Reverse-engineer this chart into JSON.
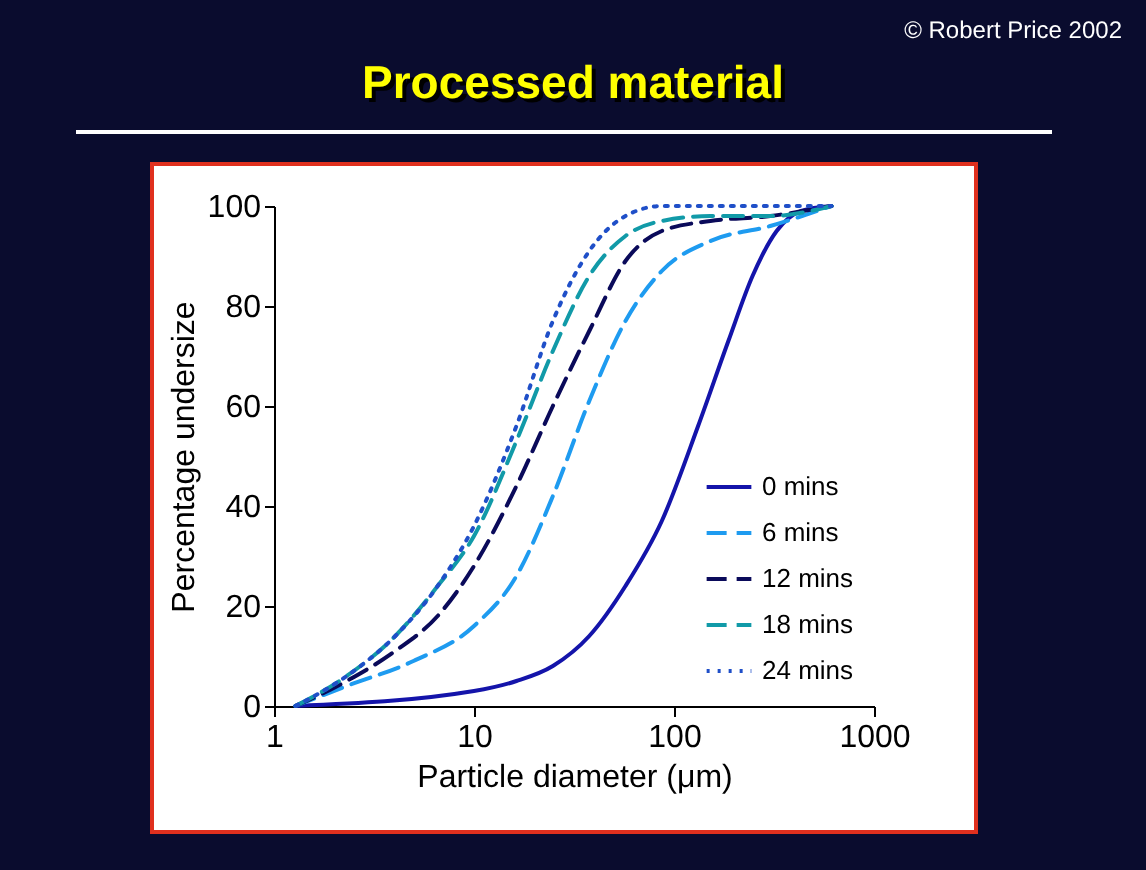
{
  "chart_data": {
    "type": "line",
    "title": "Processed material",
    "annotations": [
      "© Robert Price 2002"
    ],
    "xlabel": "Particle diameter (μm)",
    "ylabel": "Percentage undersize",
    "log": "x",
    "xlim": [
      1,
      1000
    ],
    "xticks": [
      1,
      10,
      100,
      {
        "value": 1000,
        "label": "1000"
      }
    ],
    "ylim": [
      0,
      100
    ],
    "yticks": [
      0,
      20,
      40,
      60,
      80,
      100
    ],
    "grid": false,
    "legend": "bottom right",
    "marker": "none",
    "series": [
      {
        "name": "0 mins",
        "color": "#1414aa",
        "line_style": "solid",
        "x": [
          1.28,
          10,
          16.3,
          24.8,
          37.7,
          57.2,
          86.9,
          132,
          187,
          247,
          326,
          432,
          613
        ],
        "values": [
          0,
          3,
          5,
          8,
          14,
          24,
          37,
          56,
          73,
          86,
          95,
          99,
          100
        ]
      },
      {
        "name": "6 mins",
        "color": "#1e9bf0",
        "line_style": "dashed",
        "x": [
          1.28,
          2.31,
          4.98,
          10,
          16.3,
          24.8,
          37.7,
          57.2,
          86.9,
          152,
          303,
          613
        ],
        "values": [
          0,
          4,
          9,
          16,
          26,
          42,
          61,
          77,
          87,
          93,
          96,
          100
        ]
      },
      {
        "name": "12 mins",
        "color": "#0a0a5a",
        "line_style": "dashed",
        "x": [
          1.28,
          2.31,
          4.04,
          6.58,
          10,
          16.3,
          24.8,
          37.7,
          57.2,
          86.9,
          152,
          303,
          613
        ],
        "values": [
          0,
          5,
          11,
          18,
          28,
          44,
          60,
          75,
          89,
          95,
          97,
          98,
          100
        ]
      },
      {
        "name": "18 mins",
        "color": "#119aa8",
        "line_style": "dashed",
        "x": [
          1.28,
          2.31,
          4.04,
          6.58,
          10,
          16.3,
          24.8,
          37.7,
          57.2,
          86.9,
          152,
          303,
          613
        ],
        "values": [
          0,
          6,
          14,
          24,
          34,
          53,
          71,
          86,
          94,
          97,
          98,
          98,
          100
        ]
      },
      {
        "name": "24 mins",
        "color": "#1f4fc8",
        "line_style": "dotted",
        "x": [
          1.28,
          2.31,
          4.04,
          6.58,
          10,
          16.3,
          24.8,
          37.7,
          57.2,
          86.9,
          613
        ],
        "values": [
          0,
          6,
          14,
          24,
          36,
          56,
          77,
          91,
          98,
          100,
          100
        ]
      }
    ]
  }
}
